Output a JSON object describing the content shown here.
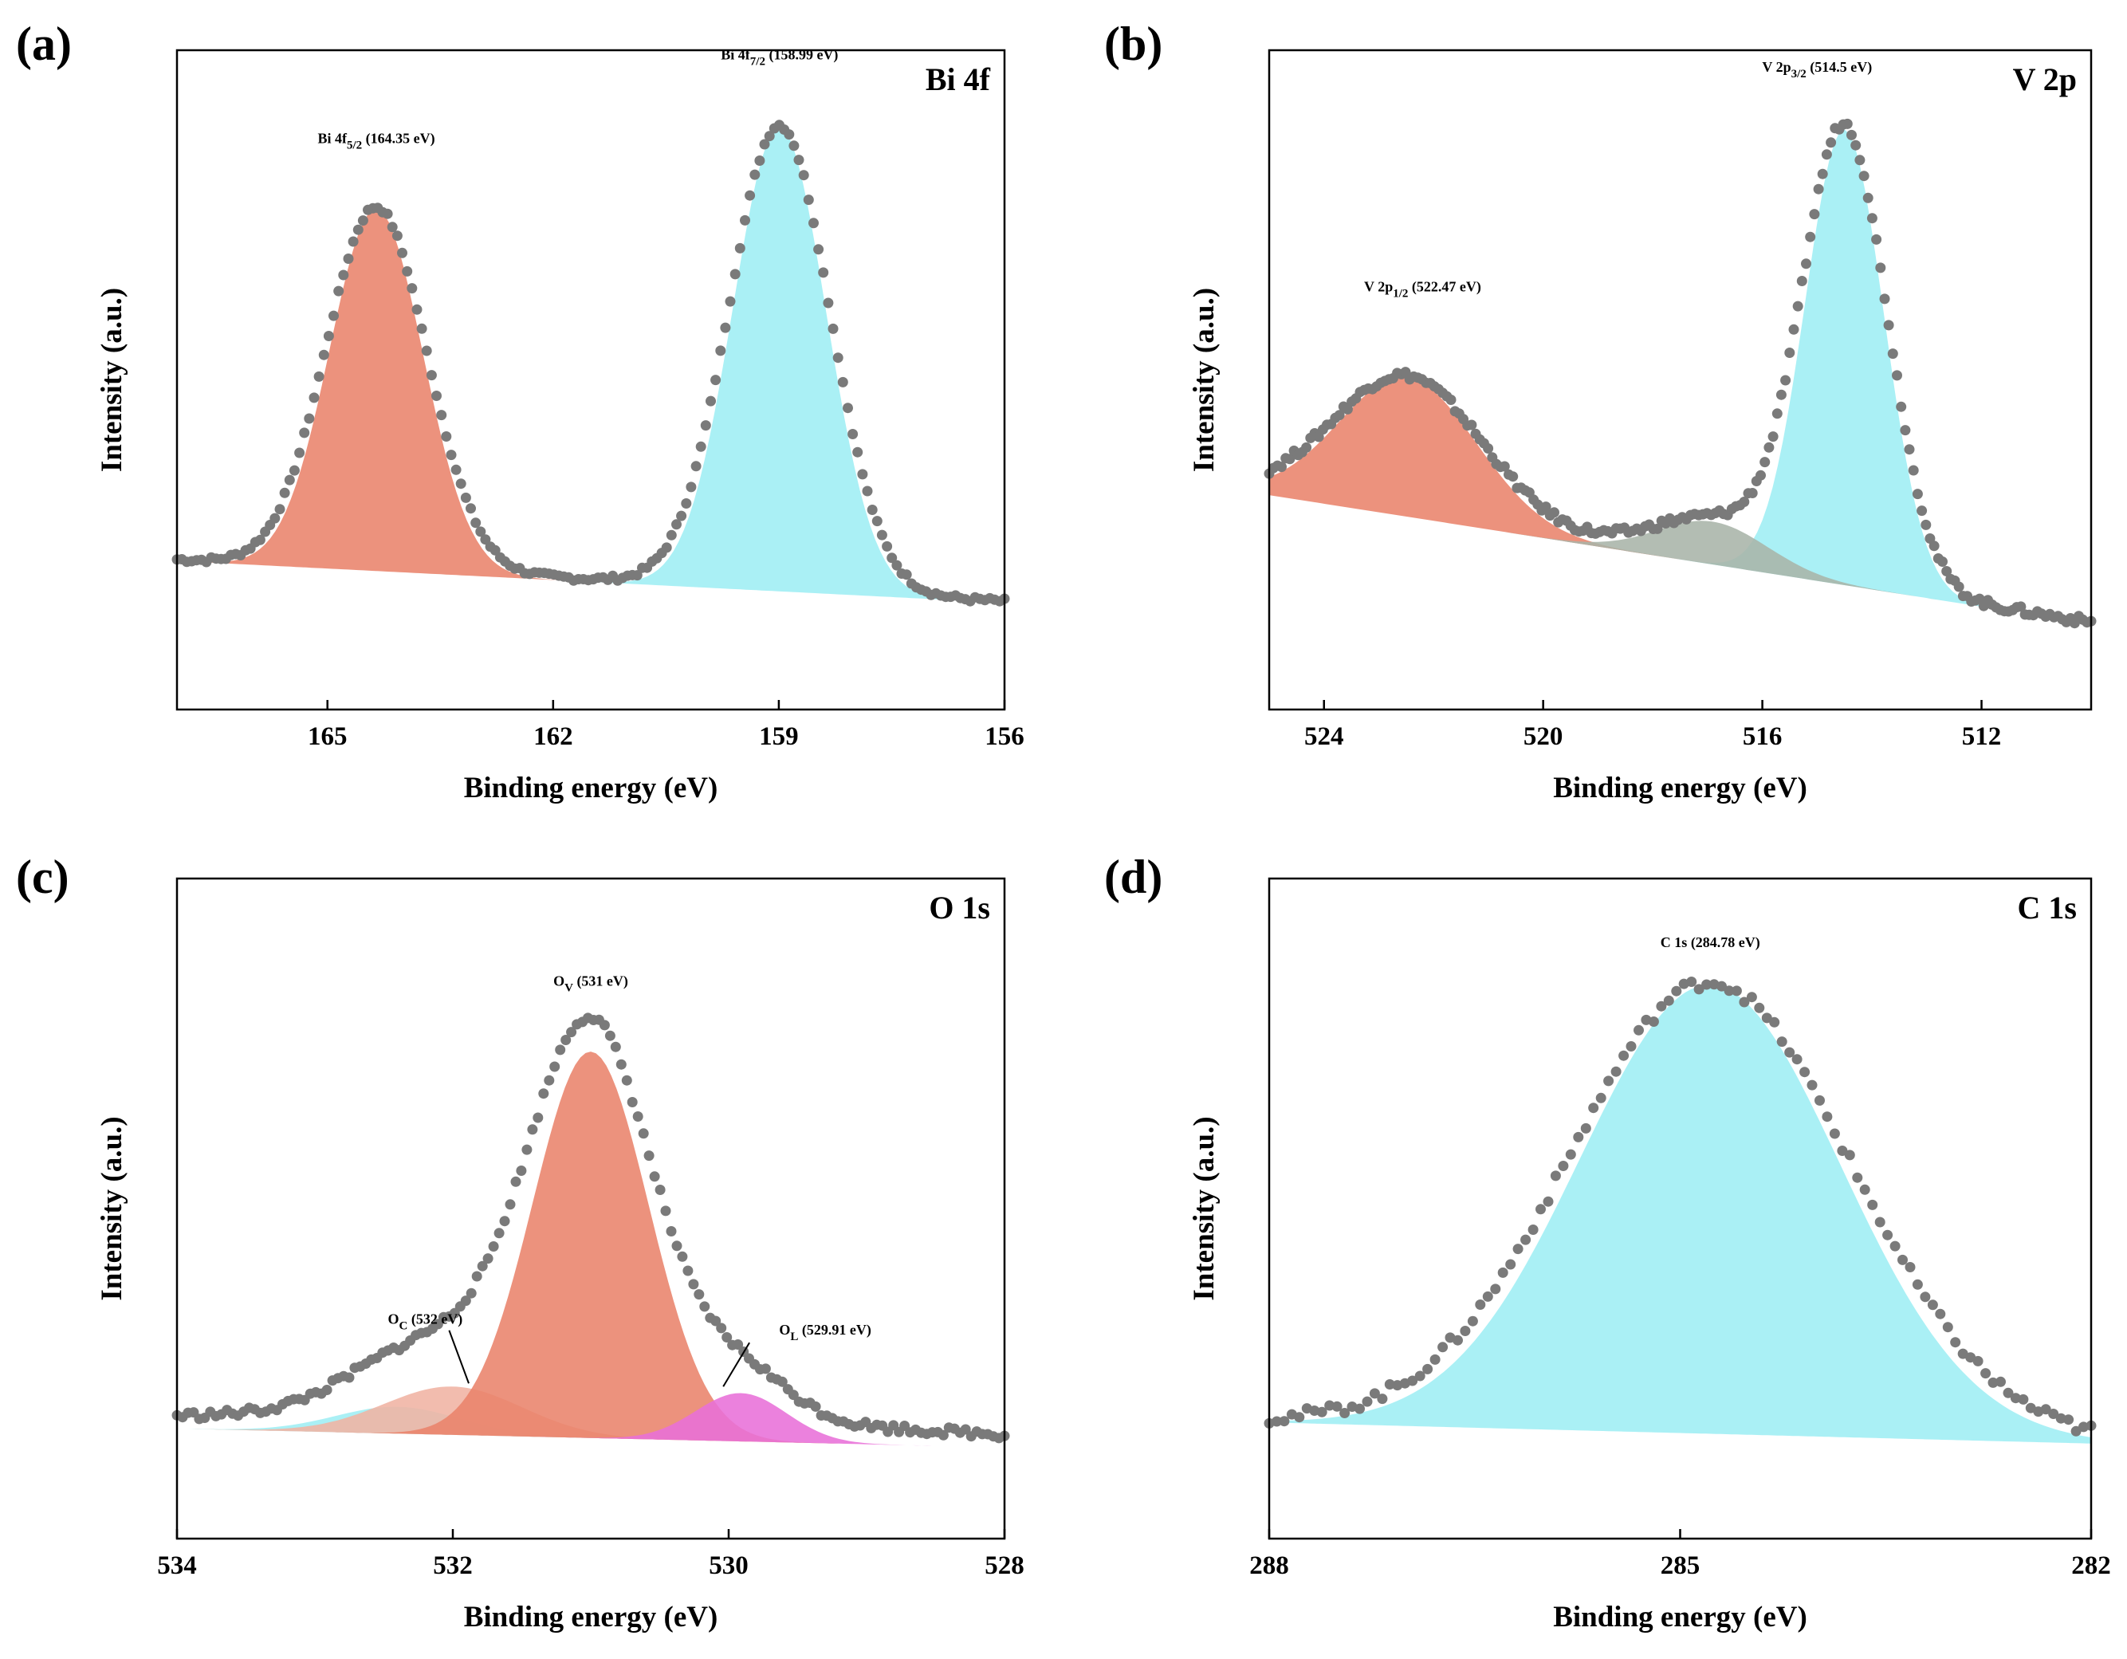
{
  "chart_data": [
    {
      "type": "area",
      "panel": "(a)",
      "element": "Bi 4f",
      "xlabel": "Binding energy (eV)",
      "ylabel": "Intensity (a.u.)",
      "xlim": [
        167,
        156
      ],
      "xticks": [
        165,
        162,
        159,
        156
      ],
      "ylim": [
        -0.3,
        1.12
      ],
      "background": [
        0.02,
        -0.07
      ],
      "components": [
        {
          "name": "Bi 4f5/2",
          "center": 164.35,
          "height": 0.78,
          "width": 0.62,
          "color": "#e9836b",
          "label_main": "Bi 4f",
          "label_sub": "5/2",
          "label_tail": " (164.35 eV)",
          "label_x": 164.35,
          "label_y": 0.92
        }
      ],
      "components2": [
        {
          "name": "Bi 4f7/2",
          "center": 158.99,
          "height": 1.0,
          "width": 0.62,
          "color": "#9eeef4",
          "label_main": "Bi 4f",
          "label_sub": "7/2",
          "label_tail": " (158.99 eV)",
          "label_x": 158.99,
          "label_y": 1.1
        }
      ],
      "points": {
        "start": 167,
        "end": 156,
        "count": 170,
        "noise": 0.006
      }
    },
    {
      "type": "area",
      "panel": "(b)",
      "element": "V 2p",
      "xlabel": "Binding energy (eV)",
      "ylabel": "Intensity (a.u.)",
      "xlim": [
        525,
        510
      ],
      "xticks": [
        524,
        520,
        516,
        512
      ],
      "ylim": [
        -0.18,
        1.05
      ],
      "background": [
        0.22,
        -0.02
      ],
      "components": [
        {
          "name": "V 2p1/2",
          "center": 522.47,
          "height": 0.26,
          "width": 1.25,
          "color": "#e9836b",
          "label_main": "V 2p",
          "label_sub": "1/2",
          "label_tail": " (522.47 eV)",
          "label_x": 522.2,
          "label_y": 0.6
        },
        {
          "name": "shoulder",
          "center": 516.9,
          "height": 0.08,
          "width": 1.0,
          "color": "#a8b4a8"
        }
      ],
      "components2": [
        {
          "name": "V 2p3/2",
          "center": 514.5,
          "height": 0.85,
          "width": 0.72,
          "color": "#9eeef4",
          "label_main": "V 2p",
          "label_sub": "3/2",
          "label_tail": " (514.5 eV)",
          "label_x": 515.0,
          "label_y": 1.01
        }
      ],
      "points": {
        "start": 525,
        "end": 510,
        "count": 200,
        "noise": 0.008
      }
    },
    {
      "type": "area",
      "panel": "(c)",
      "element": "O 1s",
      "xlabel": "Binding energy (eV)",
      "ylabel": "Intensity (a.u.)",
      "xlim": [
        534,
        528
      ],
      "xticks": [
        534,
        532,
        530,
        528
      ],
      "ylim": [
        -0.18,
        1.05
      ],
      "background": [
        0.025,
        -0.01
      ],
      "components": [
        {
          "name": "OC",
          "center": 532.0,
          "height": 0.09,
          "width": 0.5,
          "color": "#f0b3a3",
          "label_main": "O",
          "label_sub": "C",
          "label_tail": " (532 eV)",
          "label_x": 532.2,
          "label_y": 0.22
        },
        {
          "name": "OV",
          "center": 531.0,
          "height": 0.72,
          "width": 0.42,
          "color": "#e9836b",
          "label_main": "O",
          "label_sub": "V",
          "label_tail": " (531 eV)",
          "label_x": 531.0,
          "label_y": 0.85
        },
        {
          "name": "OL",
          "center": 529.91,
          "height": 0.09,
          "width": 0.33,
          "color": "#e86fd8",
          "label_main": "O",
          "label_sub": "L",
          "label_tail": " (529.91 eV)",
          "label_x": 529.3,
          "label_y": 0.2
        }
      ],
      "components2": [
        {
          "name": "shoulder",
          "center": 532.4,
          "height": 0.05,
          "width": 0.45,
          "color": "#9eeef4"
        }
      ],
      "points": {
        "start": 534,
        "end": 528,
        "count": 150,
        "noise": 0.008
      }
    },
    {
      "type": "area",
      "panel": "(d)",
      "element": "C 1s",
      "xlabel": "Binding energy (eV)",
      "ylabel": "Intensity (a.u.)",
      "xlim": [
        288,
        282
      ],
      "xticks": [
        288,
        285,
        282
      ],
      "ylim": [
        -0.2,
        1.05
      ],
      "background": [
        0.02,
        -0.02
      ],
      "components": [],
      "components2": [
        {
          "name": "C 1s",
          "center": 284.78,
          "height": 0.85,
          "width": 0.95,
          "color": "#9eeef4",
          "label_main": "C 1s",
          "label_sub": "",
          "label_tail": " (284.78 eV)",
          "label_x": 284.78,
          "label_y": 0.92
        }
      ],
      "points": {
        "start": 288,
        "end": 282,
        "count": 110,
        "noise": 0.012
      }
    }
  ]
}
